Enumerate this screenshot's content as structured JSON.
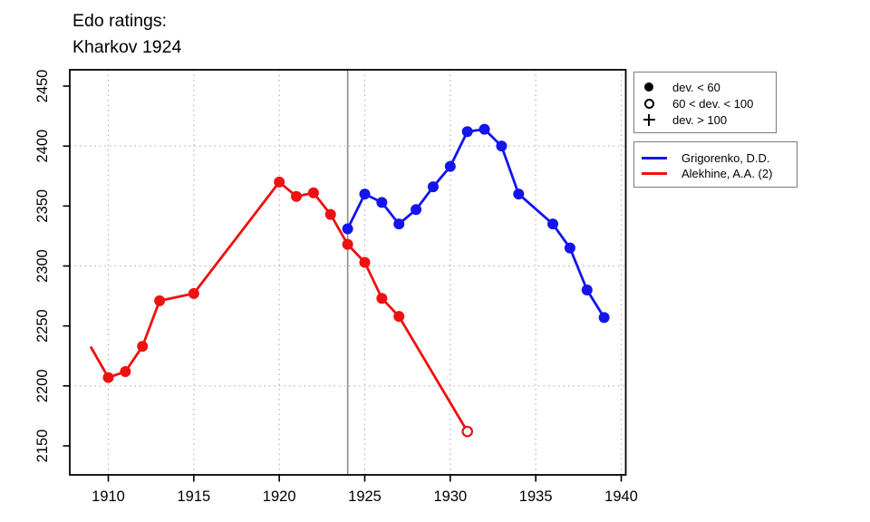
{
  "title": {
    "line1": "Edo ratings:",
    "line2": "Kharkov 1924"
  },
  "legend_symbols": {
    "items": [
      {
        "symbol": "filled-circle",
        "label": "dev. < 60"
      },
      {
        "symbol": "open-circle",
        "label": "60 < dev. < 100"
      },
      {
        "symbol": "plus",
        "label": "dev. > 100"
      }
    ]
  },
  "legend_series": {
    "items": [
      {
        "color": "#1414ee",
        "label": "Grigorenko, D.D."
      },
      {
        "color": "#ee1111",
        "label": "Alekhine, A.A. (2)"
      }
    ]
  },
  "colors": {
    "grigorenko_blue": "#1414ee",
    "alekhine_red": "#ee1111",
    "event_line_gray": "#8c8c8c",
    "grid_gray": "#b3b3b3",
    "axis_black": "#000000"
  },
  "chart_data": {
    "type": "line",
    "title": "Edo ratings: Kharkov 1924",
    "xlabel": "",
    "ylabel": "",
    "xlim": [
      1907.7,
      1940.3
    ],
    "ylim": [
      2125,
      2463
    ],
    "x_ticks": [
      1910,
      1915,
      1920,
      1925,
      1930,
      1935,
      1940
    ],
    "y_ticks": [
      2150,
      2200,
      2250,
      2300,
      2350,
      2400,
      2450
    ],
    "x_gridlines": [
      1910,
      1915,
      1920,
      1925,
      1930,
      1935,
      1940
    ],
    "y_gridlines": [
      2200,
      2300,
      2400
    ],
    "grid": true,
    "event_line_x": 1924,
    "legend_position": "right",
    "marker_meaning": {
      "filled": "dev. < 60",
      "open": "60 < dev. < 100",
      "plus": "dev. > 100",
      "none": "line vertex without marker"
    },
    "series": [
      {
        "name": "Alekhine, A.A. (2)",
        "color": "#ee1111",
        "points": [
          {
            "year": 1909,
            "rating": 2232,
            "marker": "none"
          },
          {
            "year": 1910,
            "rating": 2207,
            "marker": "filled"
          },
          {
            "year": 1911,
            "rating": 2212,
            "marker": "filled"
          },
          {
            "year": 1912,
            "rating": 2233,
            "marker": "filled"
          },
          {
            "year": 1913,
            "rating": 2271,
            "marker": "filled"
          },
          {
            "year": 1915,
            "rating": 2277,
            "marker": "filled"
          },
          {
            "year": 1920,
            "rating": 2370,
            "marker": "filled"
          },
          {
            "year": 1921,
            "rating": 2358,
            "marker": "filled"
          },
          {
            "year": 1922,
            "rating": 2361,
            "marker": "filled"
          },
          {
            "year": 1923,
            "rating": 2343,
            "marker": "filled"
          },
          {
            "year": 1924,
            "rating": 2318,
            "marker": "filled"
          },
          {
            "year": 1925,
            "rating": 2303,
            "marker": "filled"
          },
          {
            "year": 1926,
            "rating": 2273,
            "marker": "filled"
          },
          {
            "year": 1927,
            "rating": 2258,
            "marker": "filled"
          },
          {
            "year": 1931,
            "rating": 2162,
            "marker": "open"
          }
        ]
      },
      {
        "name": "Grigorenko, D.D.",
        "color": "#1414ee",
        "points": [
          {
            "year": 1924,
            "rating": 2331,
            "marker": "filled"
          },
          {
            "year": 1925,
            "rating": 2360,
            "marker": "filled"
          },
          {
            "year": 1926,
            "rating": 2353,
            "marker": "filled"
          },
          {
            "year": 1927,
            "rating": 2335,
            "marker": "filled"
          },
          {
            "year": 1928,
            "rating": 2347,
            "marker": "filled"
          },
          {
            "year": 1929,
            "rating": 2366,
            "marker": "filled"
          },
          {
            "year": 1930,
            "rating": 2383,
            "marker": "filled"
          },
          {
            "year": 1931,
            "rating": 2412,
            "marker": "filled"
          },
          {
            "year": 1932,
            "rating": 2414,
            "marker": "filled"
          },
          {
            "year": 1933,
            "rating": 2400,
            "marker": "filled"
          },
          {
            "year": 1934,
            "rating": 2360,
            "marker": "filled"
          },
          {
            "year": 1936,
            "rating": 2335,
            "marker": "filled"
          },
          {
            "year": 1937,
            "rating": 2315,
            "marker": "filled"
          },
          {
            "year": 1938,
            "rating": 2280,
            "marker": "filled"
          },
          {
            "year": 1939,
            "rating": 2257,
            "marker": "filled"
          }
        ]
      }
    ]
  }
}
